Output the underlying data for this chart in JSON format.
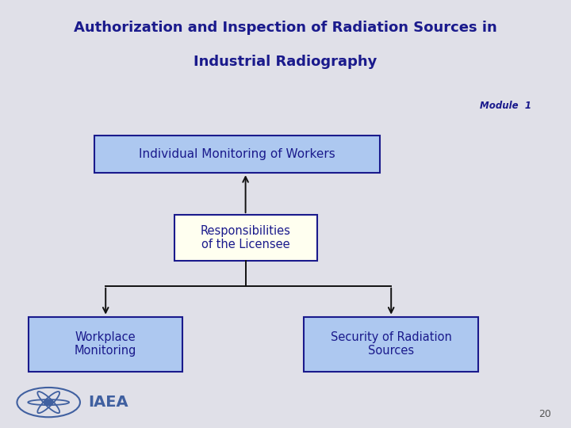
{
  "title_line1": "Authorization and Inspection of Radiation Sources in",
  "title_line2": "Industrial Radiography",
  "title_bg_color": "#c5cce0",
  "title_text_color": "#1a1a8c",
  "body_bg_color": "#e0e0e8",
  "module_text": "Module  1",
  "module_text_color": "#1a1a8c",
  "page_number": "20",
  "box_top_label": "Individual Monitoring of Workers",
  "box_top_fill": "#adc8f0",
  "box_top_border": "#1a1a8c",
  "box_mid_label": "Responsibilities\nof the Licensee",
  "box_mid_fill": "#fffff0",
  "box_mid_border": "#1a1a8c",
  "box_left_label": "Workplace\nMonitoring",
  "box_left_fill": "#adc8f0",
  "box_left_border": "#1a1a8c",
  "box_right_label": "Security of Radiation\nSources",
  "box_right_fill": "#adc8f0",
  "box_right_border": "#1a1a8c",
  "arrow_color": "#111111",
  "text_color_boxes": "#1a1a8c",
  "iaea_text_color": "#4060a0",
  "sep_color": "#a0a8b8",
  "page_num_color": "#555555"
}
